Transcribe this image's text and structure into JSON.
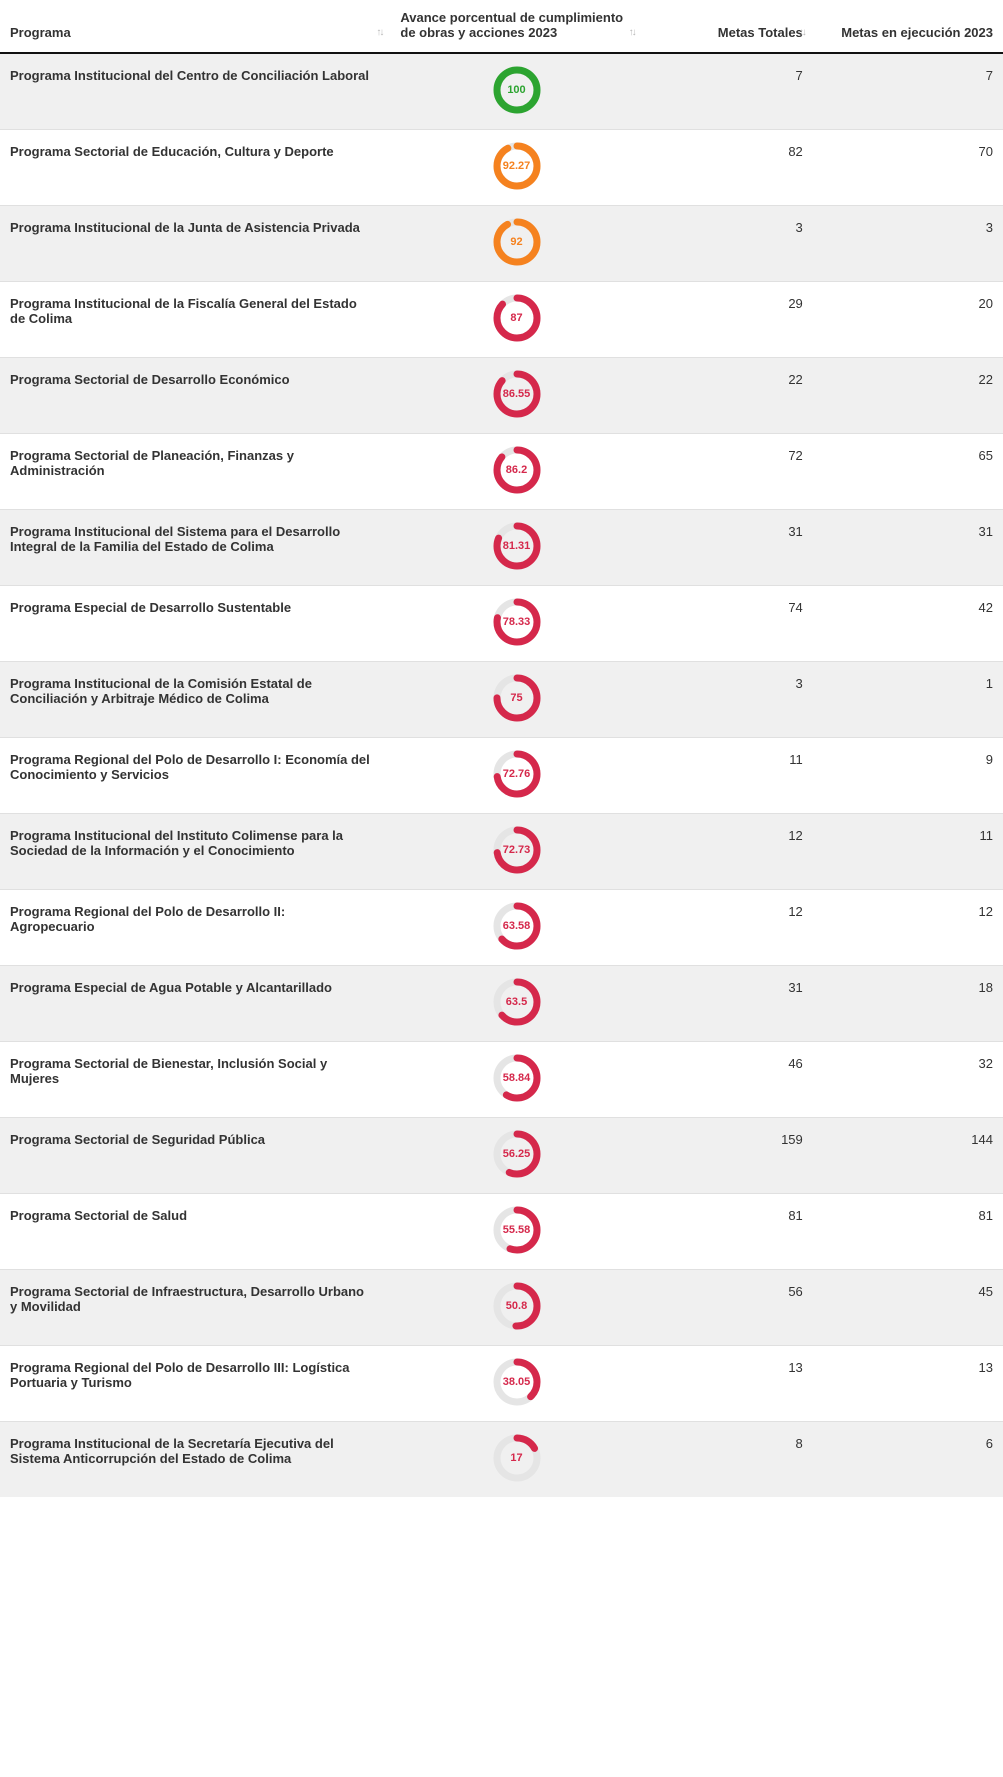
{
  "colors": {
    "green": "#2ca430",
    "orange": "#f5821f",
    "red": "#d5284b",
    "track": "#e5e5e5",
    "text": "#333333"
  },
  "donut": {
    "radius": 20,
    "strokeWidth": 7,
    "circumference": 125.664
  },
  "table": {
    "columns": [
      {
        "key": "programa",
        "label": "Programa",
        "sortable": true,
        "align": "left"
      },
      {
        "key": "avance",
        "label": "Avance porcentual de cumplimiento de obras y acciones 2023",
        "sortable": true,
        "align": "left"
      },
      {
        "key": "totales",
        "label": "Metas Totales",
        "sortable": true,
        "align": "right"
      },
      {
        "key": "ejec",
        "label": "Metas en ejecución 2023",
        "sortable": false,
        "align": "right"
      }
    ],
    "rows": [
      {
        "programa": "Programa Institucional del Centro de Conciliación Laboral",
        "avance": 100,
        "color": "green",
        "totales": 7,
        "ejec": 7
      },
      {
        "programa": "Programa Sectorial de Educación, Cultura y Deporte",
        "avance": 92.27,
        "color": "orange",
        "totales": 82,
        "ejec": 70
      },
      {
        "programa": "Programa Institucional de la Junta de Asistencia Privada",
        "avance": 92,
        "color": "orange",
        "totales": 3,
        "ejec": 3
      },
      {
        "programa": "Programa Institucional de la Fiscalía General del Estado de Colima",
        "avance": 87,
        "color": "red",
        "totales": 29,
        "ejec": 20
      },
      {
        "programa": "Programa Sectorial de Desarrollo Económico",
        "avance": 86.55,
        "color": "red",
        "totales": 22,
        "ejec": 22
      },
      {
        "programa": "Programa Sectorial de Planeación, Finanzas y Administración",
        "avance": 86.2,
        "color": "red",
        "totales": 72,
        "ejec": 65
      },
      {
        "programa": "Programa Institucional del Sistema para el Desarrollo Integral de la Familia del Estado de Colima",
        "avance": 81.31,
        "color": "red",
        "totales": 31,
        "ejec": 31
      },
      {
        "programa": "Programa Especial de Desarrollo Sustentable",
        "avance": 78.33,
        "color": "red",
        "totales": 74,
        "ejec": 42
      },
      {
        "programa": "Programa Institucional de la Comisión Estatal de Conciliación y Arbitraje Médico de Colima",
        "avance": 75,
        "color": "red",
        "totales": 3,
        "ejec": 1
      },
      {
        "programa": "Programa Regional del Polo de Desarrollo I: Economía del Conocimiento y Servicios",
        "avance": 72.76,
        "color": "red",
        "totales": 11,
        "ejec": 9
      },
      {
        "programa": "Programa Institucional del Instituto Colimense para la Sociedad de la Información y el Conocimiento",
        "avance": 72.73,
        "color": "red",
        "totales": 12,
        "ejec": 11
      },
      {
        "programa": "Programa Regional del Polo de Desarrollo II: Agropecuario",
        "avance": 63.58,
        "color": "red",
        "totales": 12,
        "ejec": 12
      },
      {
        "programa": "Programa Especial de Agua Potable y Alcantarillado",
        "avance": 63.5,
        "color": "red",
        "totales": 31,
        "ejec": 18
      },
      {
        "programa": "Programa Sectorial de Bienestar, Inclusión Social y Mujeres",
        "avance": 58.84,
        "color": "red",
        "totales": 46,
        "ejec": 32
      },
      {
        "programa": "Programa Sectorial de Seguridad Pública",
        "avance": 56.25,
        "color": "red",
        "totales": 159,
        "ejec": 144
      },
      {
        "programa": "Programa Sectorial de Salud",
        "avance": 55.58,
        "color": "red",
        "totales": 81,
        "ejec": 81
      },
      {
        "programa": "Programa Sectorial de Infraestructura, Desarrollo Urbano y Movilidad",
        "avance": 50.8,
        "color": "red",
        "totales": 56,
        "ejec": 45
      },
      {
        "programa": "Programa Regional del Polo de Desarrollo III: Logística Portuaria y Turismo",
        "avance": 38.05,
        "color": "red",
        "totales": 13,
        "ejec": 13
      },
      {
        "programa": "Programa Institucional de la Secretaría Ejecutiva del Sistema Anticorrupción del Estado de Colima",
        "avance": 17,
        "color": "red",
        "totales": 8,
        "ejec": 6
      }
    ]
  }
}
